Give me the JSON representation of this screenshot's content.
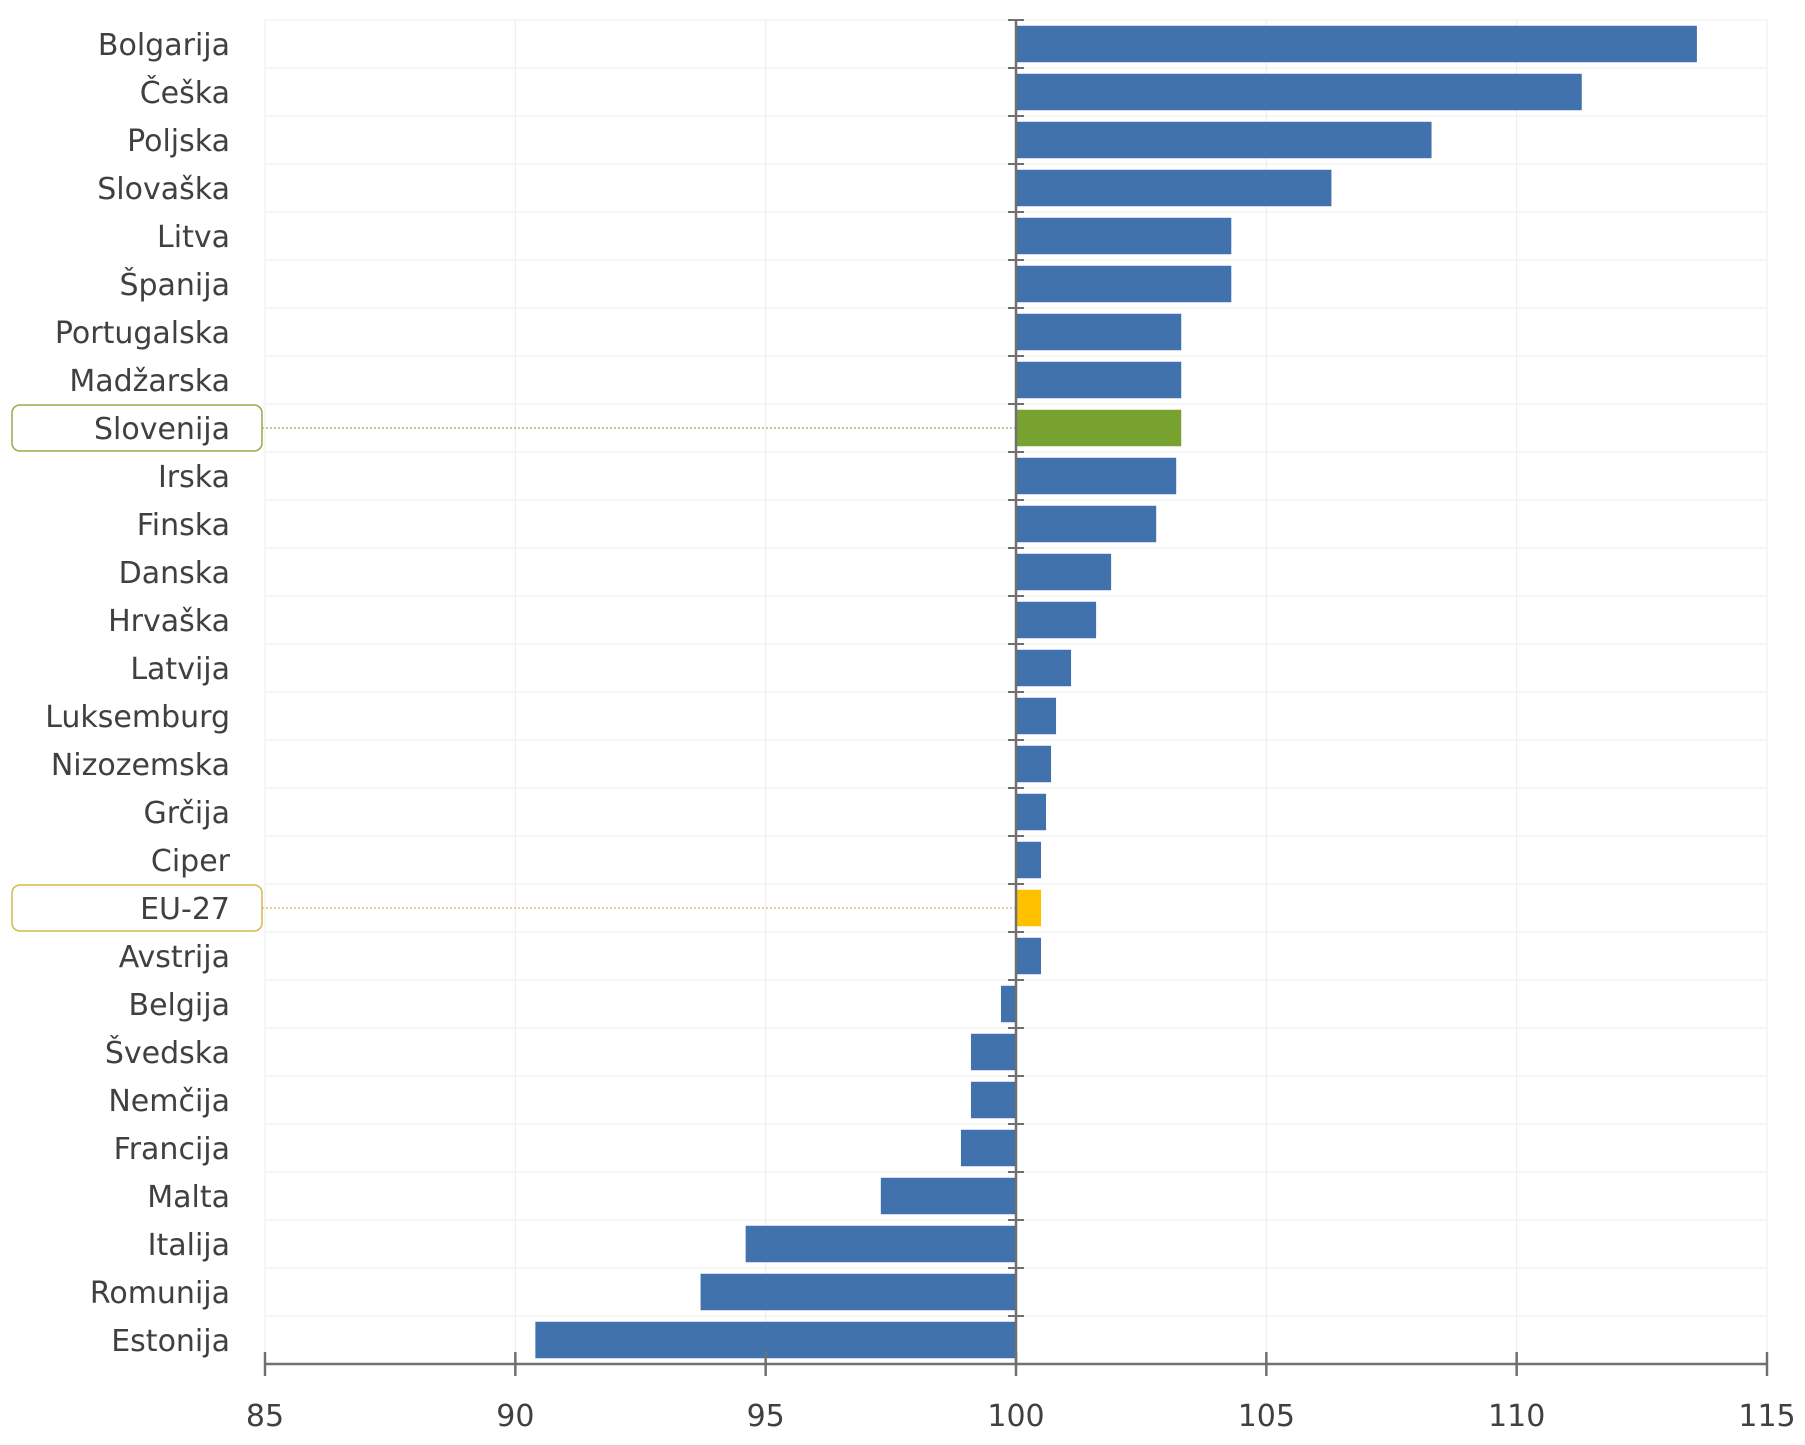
{
  "chart_data": {
    "type": "bar",
    "orientation": "horizontal",
    "baseline": 100,
    "xlim": [
      85,
      115
    ],
    "xticks": [
      85,
      90,
      95,
      100,
      105,
      110,
      115
    ],
    "grid": true,
    "categories": [
      "Bolgarija",
      "Češka",
      "Poljska",
      "Slovaška",
      "Litva",
      "Španija",
      "Portugalska",
      "Madžarska",
      "Slovenija",
      "Irska",
      "Finska",
      "Danska",
      "Hrvaška",
      "Latvija",
      "Luksemburg",
      "Nizozemska",
      "Grčija",
      "Ciper",
      "EU-27",
      "Avstrija",
      "Belgija",
      "Švedska",
      "Nemčija",
      "Francija",
      "Malta",
      "Italija",
      "Romunija",
      "Estonija"
    ],
    "values": [
      113.6,
      111.3,
      108.3,
      106.3,
      104.3,
      104.3,
      103.3,
      103.3,
      103.3,
      103.2,
      102.8,
      101.9,
      101.6,
      101.1,
      100.8,
      100.7,
      100.6,
      100.5,
      100.5,
      100.5,
      99.7,
      99.1,
      99.1,
      98.9,
      97.3,
      94.6,
      93.7,
      90.4
    ],
    "highlights": [
      {
        "category": "Slovenija",
        "color": "#78A22F"
      },
      {
        "category": "EU-27",
        "color": "#FFC000"
      }
    ],
    "colors": {
      "bar": "#4272AD",
      "axis": "#707070",
      "grid": "#ECECEC",
      "slovenia_outline": "#9EA74E",
      "eu_outline": "#D4B94A"
    }
  }
}
